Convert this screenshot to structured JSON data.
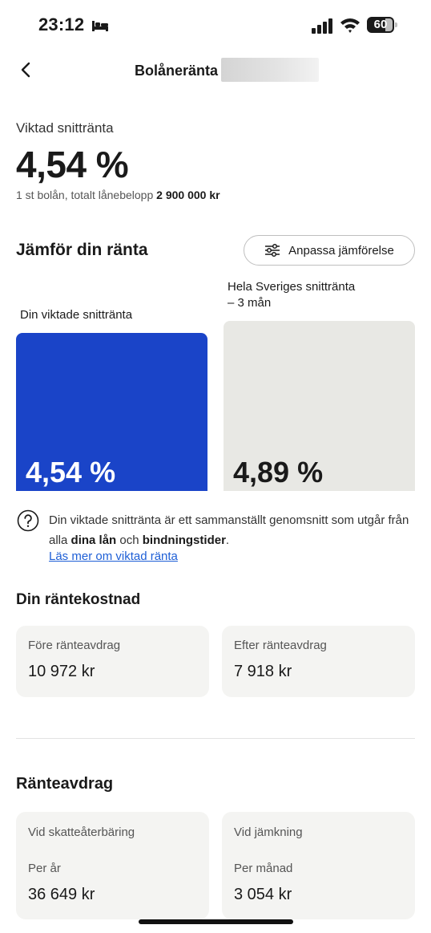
{
  "status_bar": {
    "time": "23:12",
    "battery": "60"
  },
  "header": {
    "title": "Bolåneränta"
  },
  "weighted_rate": {
    "label": "Viktad snittränta",
    "value": "4,54 %",
    "sub_prefix": "1 st bolån, totalt lånebelopp ",
    "sub_amount": "2 900 000 kr"
  },
  "compare": {
    "title": "Jämför din ränta",
    "adjust_label": "Anpassa jämförelse",
    "chart_data": {
      "type": "bar",
      "categories": [
        "Din viktade snittränta",
        "Hela Sveriges snittränta - 3 mån"
      ],
      "values": [
        4.54,
        4.89
      ],
      "series": [
        {
          "label": "Din viktade snittränta",
          "display": "4,54 %",
          "color": "#1a44c8",
          "value": 4.54
        },
        {
          "label_line1": "Hela Sveriges snittränta",
          "label_line2": "– 3 mån",
          "display": "4,89 %",
          "color": "#e8e8e4",
          "value": 4.89
        }
      ]
    }
  },
  "info": {
    "text_part1": "Din viktade snittränta är ett sammanställt genomsnitt som utgår från alla ",
    "bold1": "dina lån",
    "text_part2": " och ",
    "bold2": "bindningstider",
    "text_part3": ".",
    "link": "Läs mer om viktad ränta"
  },
  "cost": {
    "title": "Din räntekostnad",
    "cards": [
      {
        "label": "Före ränteavdrag",
        "value": "10 972 kr"
      },
      {
        "label": "Efter ränteavdrag",
        "value": "7 918 kr"
      }
    ]
  },
  "deduction": {
    "title": "Ränteavdrag",
    "cards": [
      {
        "label": "Vid skatteåterbäring",
        "period": "Per år",
        "value": "36 649 kr"
      },
      {
        "label": "Vid jämkning",
        "period": "Per månad",
        "value": "3 054 kr"
      }
    ]
  },
  "colors": {
    "accent_blue": "#1a44c8",
    "link_blue": "#1e5fd6",
    "card_bg": "#f4f4f2"
  }
}
